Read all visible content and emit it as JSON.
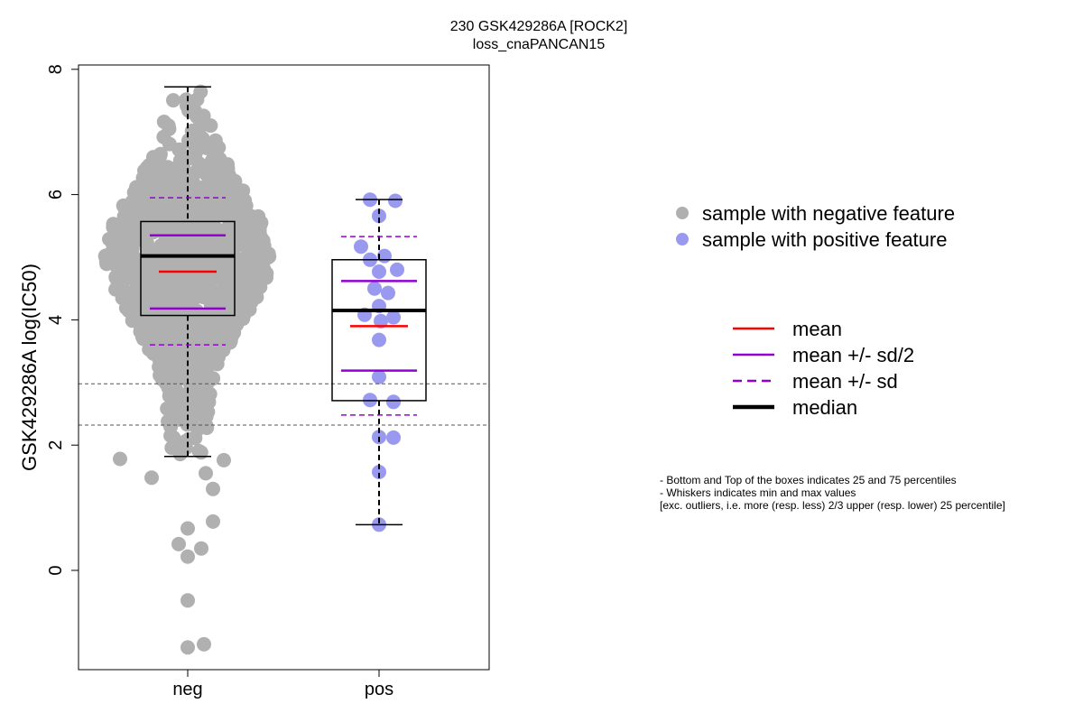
{
  "chart_data": {
    "type": "box+scatter",
    "title": "230 GSK429286A [ROCK2]",
    "subtitle": "loss_cnaPANCAN15",
    "ylabel": "GSK429286A log(IC50)",
    "xlabel": "",
    "categories": [
      "neg",
      "pos"
    ],
    "ylim": [
      -1.6,
      8.2
    ],
    "yticks": [
      0,
      2,
      4,
      6,
      8
    ],
    "reference_lines": [
      2.98,
      2.32
    ],
    "groups": [
      {
        "name": "neg",
        "color": "#b0b0b0",
        "whisker_low": 1.82,
        "q1": 4.07,
        "median": 5.02,
        "q3": 5.57,
        "whisker_high": 7.72,
        "mean": 4.77,
        "mean_minus_half_sd": 4.18,
        "mean_plus_half_sd": 5.35,
        "mean_minus_sd": 3.6,
        "mean_plus_sd": 5.95,
        "n_points": 1000,
        "outliers": [
          1.78,
          1.76,
          1.55,
          1.48,
          1.3,
          0.78,
          0.67,
          0.42,
          0.35,
          0.22,
          -0.48,
          -1.18,
          -1.23
        ]
      },
      {
        "name": "pos",
        "color": "#9999f0",
        "whisker_low": 0.73,
        "q1": 2.71,
        "median": 4.15,
        "q3": 4.96,
        "whisker_high": 5.92,
        "mean": 3.9,
        "mean_minus_half_sd": 3.19,
        "mean_plus_half_sd": 4.62,
        "mean_minus_sd": 2.48,
        "mean_plus_sd": 5.33,
        "values": [
          5.92,
          5.9,
          5.66,
          5.17,
          5.02,
          4.96,
          4.8,
          4.77,
          4.5,
          4.43,
          4.22,
          4.08,
          4.04,
          3.98,
          3.68,
          3.09,
          2.72,
          2.69,
          2.13,
          2.12,
          1.57,
          0.73
        ]
      }
    ],
    "legend": {
      "points": [
        {
          "label": "sample with negative feature",
          "color": "#b0b0b0"
        },
        {
          "label": "sample with positive feature",
          "color": "#9999f0"
        }
      ],
      "lines": [
        {
          "label": "mean",
          "color": "#ff0000",
          "style": "solid"
        },
        {
          "label": "mean +/- sd/2",
          "color": "#9400d3",
          "style": "solid"
        },
        {
          "label": "mean +/- sd",
          "color": "#9400d3",
          "style": "dashed"
        },
        {
          "label": "median",
          "color": "#000000",
          "style": "solid-thick"
        }
      ]
    },
    "notes": [
      "- Bottom and Top of the boxes indicates 25 and 75 percentiles",
      "- Whiskers indicates min and max values",
      "[exc. outliers, i.e. more (resp. less) 2/3 upper (resp. lower) 25 percentile]"
    ]
  }
}
